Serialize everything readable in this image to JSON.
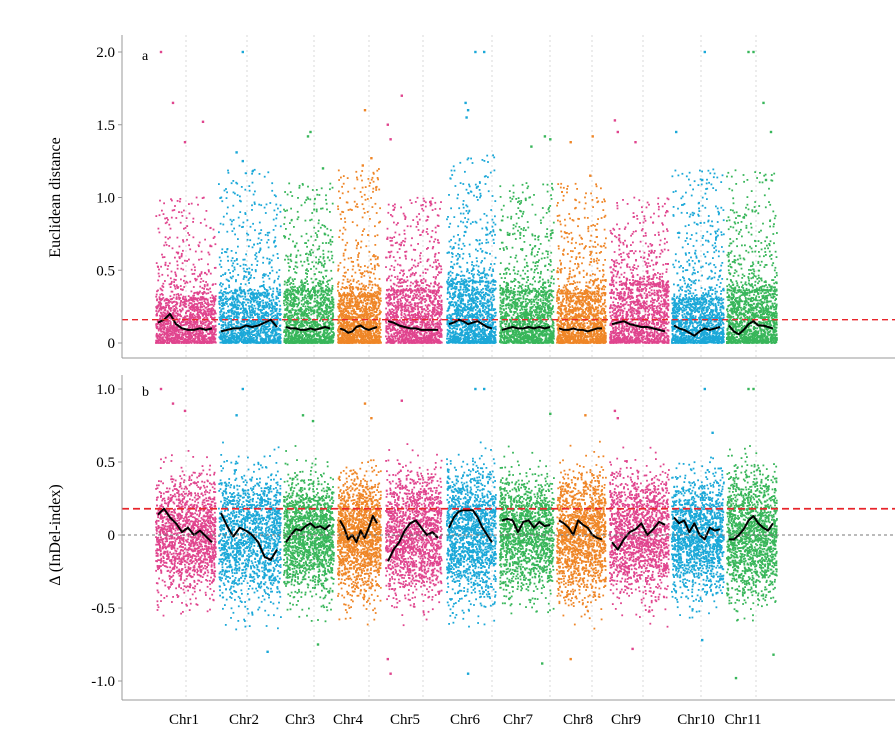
{
  "chart_data": [
    {
      "type": "scatter",
      "panel_label": "a",
      "ylabel": "Euclidean distance",
      "ylim": [
        0,
        2.0
      ],
      "yticks": [
        {
          "value": 0,
          "label": "0"
        },
        {
          "value": 0.5,
          "label": "0.5"
        },
        {
          "value": 1.0,
          "label": "1.0"
        },
        {
          "value": 1.5,
          "label": "1.5"
        },
        {
          "value": 2.0,
          "label": "2.0"
        }
      ],
      "threshold": 0.16,
      "threshold_color": "#e8242a",
      "vertical_grid": true,
      "chromosomes": [
        "Chr1",
        "Chr2",
        "Chr3",
        "Chr4",
        "Chr5",
        "Chr6",
        "Chr7",
        "Chr8",
        "Chr9",
        "Chr10",
        "Chr11"
      ],
      "chromosome_colors": [
        "#e0458e",
        "#1ba8d8",
        "#38b65a",
        "#ef8627",
        "#e0458e",
        "#1ba8d8",
        "#38b65a",
        "#ef8627",
        "#e0458e",
        "#1ba8d8",
        "#38b65a"
      ],
      "dense_upper": [
        0.3,
        0.34,
        0.36,
        0.32,
        0.36,
        0.42,
        0.35,
        0.34,
        0.4,
        0.3,
        0.36
      ],
      "spread_upper": [
        1.0,
        1.2,
        1.1,
        1.2,
        1.0,
        1.3,
        1.1,
        1.1,
        1.0,
        1.2,
        1.2
      ],
      "fitted_curves": [
        [
          0.14,
          0.16,
          0.2,
          0.13,
          0.1,
          0.09,
          0.09,
          0.1,
          0.09,
          0.1
        ],
        [
          0.08,
          0.09,
          0.1,
          0.1,
          0.12,
          0.11,
          0.12,
          0.14,
          0.16,
          0.11
        ],
        [
          0.11,
          0.1,
          0.1,
          0.09,
          0.09,
          0.1,
          0.09,
          0.1,
          0.11,
          0.1
        ],
        [
          0.1,
          0.09,
          0.07,
          0.08,
          0.11,
          0.12,
          0.1,
          0.09,
          0.1,
          0.11
        ],
        [
          0.15,
          0.14,
          0.12,
          0.11,
          0.1,
          0.1,
          0.09,
          0.09,
          0.09,
          0.09
        ],
        [
          0.13,
          0.14,
          0.16,
          0.15,
          0.13,
          0.14,
          0.15,
          0.13,
          0.11,
          0.1
        ],
        [
          0.09,
          0.1,
          0.11,
          0.1,
          0.1,
          0.11,
          0.1,
          0.11,
          0.1,
          0.11
        ],
        [
          0.1,
          0.09,
          0.09,
          0.1,
          0.09,
          0.09,
          0.08,
          0.09,
          0.1,
          0.1
        ],
        [
          0.13,
          0.14,
          0.15,
          0.13,
          0.12,
          0.11,
          0.11,
          0.1,
          0.09,
          0.08
        ],
        [
          0.12,
          0.1,
          0.09,
          0.07,
          0.05,
          0.08,
          0.1,
          0.09,
          0.1,
          0.11
        ],
        [
          0.12,
          0.08,
          0.06,
          0.09,
          0.13,
          0.15,
          0.12,
          0.12,
          0.11,
          0.1
        ]
      ],
      "outliers": [
        {
          "chr": 1,
          "pos": 0.1,
          "y": 2.0
        },
        {
          "chr": 1,
          "pos": 0.3,
          "y": 1.65
        },
        {
          "chr": 1,
          "pos": 0.5,
          "y": 1.38
        },
        {
          "chr": 1,
          "pos": 0.8,
          "y": 1.52
        },
        {
          "chr": 2,
          "pos": 0.4,
          "y": 2.0
        },
        {
          "chr": 2,
          "pos": 0.3,
          "y": 1.31
        },
        {
          "chr": 2,
          "pos": 0.4,
          "y": 1.25
        },
        {
          "chr": 3,
          "pos": 0.55,
          "y": 1.45
        },
        {
          "chr": 3,
          "pos": 0.5,
          "y": 1.42
        },
        {
          "chr": 3,
          "pos": 0.8,
          "y": 1.2
        },
        {
          "chr": 4,
          "pos": 0.65,
          "y": 1.6
        },
        {
          "chr": 4,
          "pos": 0.8,
          "y": 1.27
        },
        {
          "chr": 4,
          "pos": 0.6,
          "y": 1.22
        },
        {
          "chr": 5,
          "pos": 0.05,
          "y": 1.5
        },
        {
          "chr": 5,
          "pos": 0.3,
          "y": 1.7
        },
        {
          "chr": 5,
          "pos": 0.1,
          "y": 1.4
        },
        {
          "chr": 6,
          "pos": 0.6,
          "y": 2.0
        },
        {
          "chr": 6,
          "pos": 0.78,
          "y": 2.0
        },
        {
          "chr": 6,
          "pos": 0.4,
          "y": 1.65
        },
        {
          "chr": 6,
          "pos": 0.45,
          "y": 1.6
        },
        {
          "chr": 6,
          "pos": 0.42,
          "y": 1.55
        },
        {
          "chr": 7,
          "pos": 0.6,
          "y": 1.35
        },
        {
          "chr": 7,
          "pos": 0.85,
          "y": 1.42
        },
        {
          "chr": 7,
          "pos": 0.95,
          "y": 1.4
        },
        {
          "chr": 8,
          "pos": 0.3,
          "y": 1.38
        },
        {
          "chr": 8,
          "pos": 0.75,
          "y": 1.42
        },
        {
          "chr": 8,
          "pos": 0.7,
          "y": 1.15
        },
        {
          "chr": 9,
          "pos": 0.1,
          "y": 1.53
        },
        {
          "chr": 9,
          "pos": 0.15,
          "y": 1.45
        },
        {
          "chr": 9,
          "pos": 0.45,
          "y": 1.38
        },
        {
          "chr": 10,
          "pos": 0.65,
          "y": 2.0
        },
        {
          "chr": 10,
          "pos": 0.1,
          "y": 1.45
        },
        {
          "chr": 10,
          "pos": 0.6,
          "y": 1.12
        },
        {
          "chr": 11,
          "pos": 0.45,
          "y": 2.0
        },
        {
          "chr": 11,
          "pos": 0.55,
          "y": 2.0
        },
        {
          "chr": 11,
          "pos": 0.75,
          "y": 1.65
        },
        {
          "chr": 11,
          "pos": 0.9,
          "y": 1.45
        },
        {
          "chr": 11,
          "pos": 0.8,
          "y": 1.12
        }
      ]
    },
    {
      "type": "scatter",
      "panel_label": "b",
      "ylabel": "Δ (InDel-index)",
      "ylim": [
        -1.0,
        1.0
      ],
      "yticks": [
        {
          "value": -1.0,
          "label": "-1.0"
        },
        {
          "value": -0.5,
          "label": "-0.5"
        },
        {
          "value": 0,
          "label": "0"
        },
        {
          "value": 0.5,
          "label": "0.5"
        },
        {
          "value": 1.0,
          "label": "1.0"
        }
      ],
      "threshold": 0.18,
      "threshold_color": "#e8242a",
      "zero_line": 0,
      "vertical_grid": true,
      "chromosomes": [
        "Chr1",
        "Chr2",
        "Chr3",
        "Chr4",
        "Chr5",
        "Chr6",
        "Chr7",
        "Chr8",
        "Chr9",
        "Chr10",
        "Chr11"
      ],
      "chromosome_colors": [
        "#e0458e",
        "#1ba8d8",
        "#38b65a",
        "#ef8627",
        "#e0458e",
        "#1ba8d8",
        "#38b65a",
        "#ef8627",
        "#e0458e",
        "#1ba8d8",
        "#38b65a"
      ],
      "spread": [
        0.55,
        0.6,
        0.55,
        0.55,
        0.58,
        0.62,
        0.55,
        0.58,
        0.58,
        0.55,
        0.58
      ],
      "fitted_curves": [
        [
          0.14,
          0.18,
          0.12,
          0.08,
          0.02,
          0.05,
          0.0,
          0.03,
          -0.01,
          -0.05
        ],
        [
          0.15,
          0.06,
          -0.01,
          0.05,
          0.03,
          0.0,
          -0.05,
          -0.15,
          -0.17,
          -0.1
        ],
        [
          -0.05,
          0.0,
          0.04,
          0.03,
          0.06,
          0.08,
          0.05,
          0.06,
          0.04,
          0.07
        ],
        [
          0.1,
          0.05,
          -0.03,
          0.0,
          -0.05,
          0.03,
          -0.02,
          0.05,
          0.13,
          0.08
        ],
        [
          -0.18,
          -0.1,
          -0.05,
          0.03,
          0.08,
          0.1,
          0.05,
          0.0,
          0.02,
          -0.02
        ],
        [
          0.05,
          0.12,
          0.16,
          0.17,
          0.17,
          0.17,
          0.12,
          0.05,
          0.0,
          -0.05
        ],
        [
          0.1,
          0.11,
          0.1,
          0.02,
          0.09,
          0.1,
          0.05,
          0.09,
          0.06,
          0.07
        ],
        [
          0.1,
          0.08,
          0.05,
          0.0,
          0.1,
          0.07,
          0.05,
          0.0,
          -0.02,
          -0.03
        ],
        [
          -0.05,
          -0.1,
          -0.03,
          0.02,
          0.04,
          0.08,
          0.0,
          0.04,
          0.09,
          0.07
        ],
        [
          0.12,
          0.08,
          0.1,
          0.02,
          0.08,
          0.0,
          -0.03,
          0.05,
          0.03,
          0.04
        ],
        [
          -0.03,
          -0.03,
          0.0,
          0.04,
          0.1,
          0.13,
          0.08,
          0.05,
          0.03,
          0.08
        ]
      ],
      "outliers": [
        {
          "chr": 1,
          "pos": 0.1,
          "y": 1.0
        },
        {
          "chr": 1,
          "pos": 0.3,
          "y": 0.9
        },
        {
          "chr": 1,
          "pos": 0.5,
          "y": 0.85
        },
        {
          "chr": 2,
          "pos": 0.4,
          "y": 1.0
        },
        {
          "chr": 2,
          "pos": 0.3,
          "y": 0.82
        },
        {
          "chr": 2,
          "pos": 0.8,
          "y": -0.8
        },
        {
          "chr": 3,
          "pos": 0.4,
          "y": 0.82
        },
        {
          "chr": 3,
          "pos": 0.6,
          "y": 0.78
        },
        {
          "chr": 3,
          "pos": 0.7,
          "y": -0.75
        },
        {
          "chr": 4,
          "pos": 0.65,
          "y": 0.9
        },
        {
          "chr": 4,
          "pos": 0.8,
          "y": 0.8
        },
        {
          "chr": 5,
          "pos": 0.3,
          "y": 0.92
        },
        {
          "chr": 5,
          "pos": 0.05,
          "y": -0.85
        },
        {
          "chr": 5,
          "pos": 0.1,
          "y": -0.95
        },
        {
          "chr": 6,
          "pos": 0.6,
          "y": 1.0
        },
        {
          "chr": 6,
          "pos": 0.78,
          "y": 1.0
        },
        {
          "chr": 6,
          "pos": 0.45,
          "y": -0.95
        },
        {
          "chr": 7,
          "pos": 0.8,
          "y": -0.88
        },
        {
          "chr": 7,
          "pos": 0.95,
          "y": 0.83
        },
        {
          "chr": 8,
          "pos": 0.3,
          "y": -0.85
        },
        {
          "chr": 8,
          "pos": 0.6,
          "y": 0.82
        },
        {
          "chr": 9,
          "pos": 0.1,
          "y": 0.85
        },
        {
          "chr": 9,
          "pos": 0.4,
          "y": -0.78
        },
        {
          "chr": 9,
          "pos": 0.15,
          "y": 0.8
        },
        {
          "chr": 10,
          "pos": 0.65,
          "y": 1.0
        },
        {
          "chr": 10,
          "pos": 0.6,
          "y": -0.72
        },
        {
          "chr": 10,
          "pos": 0.8,
          "y": 0.7
        },
        {
          "chr": 11,
          "pos": 0.45,
          "y": 1.0
        },
        {
          "chr": 11,
          "pos": 0.55,
          "y": 1.0
        },
        {
          "chr": 11,
          "pos": 0.2,
          "y": -0.98
        },
        {
          "chr": 11,
          "pos": 0.95,
          "y": -0.82
        }
      ]
    }
  ]
}
